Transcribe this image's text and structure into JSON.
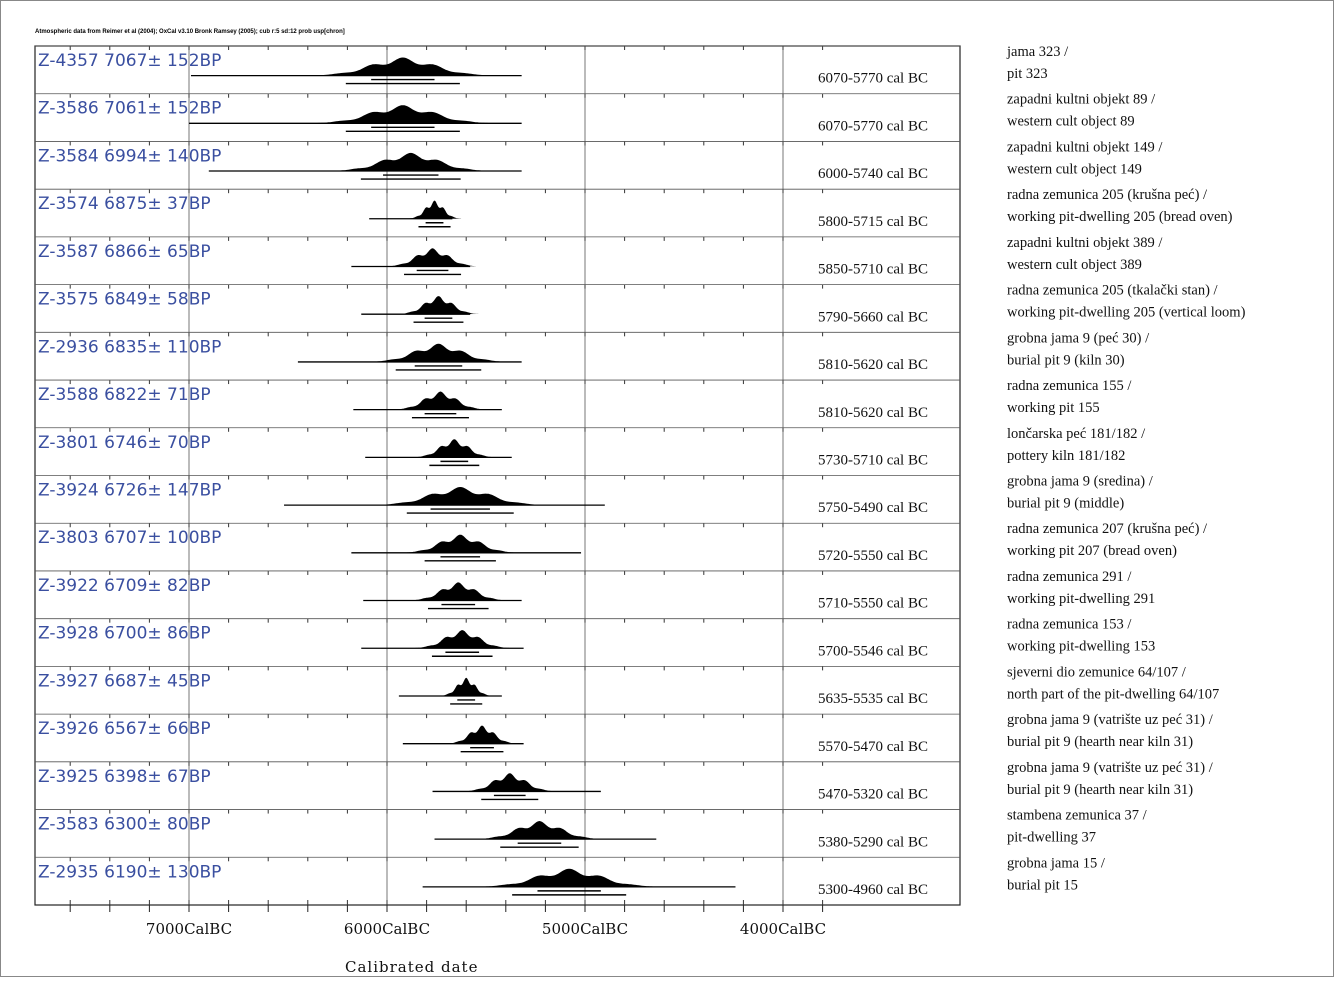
{
  "chart_data": {
    "type": "range",
    "title": "Atmospheric data from Reimer et al (2004); OxCal v3.10 Bronk Ramsey (2005); cub r:5 sd:12 prob usp[chron]",
    "xlabel": "Calibrated date",
    "x_axis": {
      "unit": "cal BC",
      "min": 7800,
      "max": 3800,
      "direction": "decreasing-left-to-right",
      "tick_values": [
        7000,
        6000,
        5000,
        4000
      ],
      "tick_labels": [
        "7000CalBC",
        "6000CalBC",
        "5000CalBC",
        "4000CalBC"
      ],
      "grid": true
    },
    "rows": [
      {
        "lab": "Z-4357",
        "age": "7067± 152BP",
        "range": "6070-5770 cal BC",
        "ctx1": "jama 323 /",
        "ctx2": "pit 323",
        "peak": 5920,
        "spread": 160,
        "whisker": [
          6990,
          5320
        ]
      },
      {
        "lab": "Z-3586",
        "age": "7061± 152BP",
        "range": "6070-5770 cal BC",
        "ctx1": "zapadni kultni objekt 89 /",
        "ctx2": "western cult object 89",
        "peak": 5920,
        "spread": 160,
        "whisker": [
          7000,
          5320
        ]
      },
      {
        "lab": "Z-3584",
        "age": "6994± 140BP",
        "range": "6000-5740 cal BC",
        "ctx1": "zapadni kultni objekt 149 /",
        "ctx2": "western cult object 149",
        "peak": 5880,
        "spread": 140,
        "whisker": [
          6900,
          5320
        ]
      },
      {
        "lab": "Z-3574",
        "age": "6875± 37BP",
        "range": "5800-5715 cal BC",
        "ctx1": "radna zemunica 205 (krušna peć) /",
        "ctx2": "working pit-dwelling 205 (bread oven)",
        "peak": 5760,
        "spread": 45,
        "whisker": [
          6090,
          5670
        ]
      },
      {
        "lab": "Z-3587",
        "age": "6866± 65BP",
        "range": "5850-5710 cal BC",
        "ctx1": "zapadni kultni objekt 389 /",
        "ctx2": "western cult object 389",
        "peak": 5770,
        "spread": 80,
        "whisker": [
          6180,
          5580
        ]
      },
      {
        "lab": "Z-3575",
        "age": "6849± 58BP",
        "range": "5790-5660 cal BC",
        "ctx1": "radna zemunica 205 (tkalački stan) /",
        "ctx2": "working pit-dwelling 205 (vertical loom)",
        "peak": 5740,
        "spread": 70,
        "whisker": [
          6130,
          5580
        ]
      },
      {
        "lab": "Z-2936",
        "age": "6835± 110BP",
        "range": "5810-5620 cal BC",
        "ctx1": "grobna jama 9 (peć 30) /",
        "ctx2": "burial pit 9 (kiln 30)",
        "peak": 5740,
        "spread": 120,
        "whisker": [
          6450,
          5320
        ]
      },
      {
        "lab": "Z-3588",
        "age": "6822± 71BP",
        "range": "5810-5620 cal BC",
        "ctx1": "radna zemunica 155 /",
        "ctx2": "working pit 155",
        "peak": 5730,
        "spread": 80,
        "whisker": [
          6170,
          5420
        ]
      },
      {
        "lab": "Z-3801",
        "age": "6746± 70BP",
        "range": "5730-5710 cal BC",
        "ctx1": "lončarska peć 181/182 /",
        "ctx2": "pottery kiln 181/182",
        "peak": 5660,
        "spread": 70,
        "whisker": [
          6110,
          5370
        ]
      },
      {
        "lab": "Z-3924",
        "age": "6726± 147BP",
        "range": "5750-5490 cal BC",
        "ctx1": "grobna jama 9 (sredina) /",
        "ctx2": "burial pit 9 (middle)",
        "peak": 5630,
        "spread": 150,
        "whisker": [
          6520,
          4900
        ]
      },
      {
        "lab": "Z-3803",
        "age": "6707± 100BP",
        "range": "5720-5550 cal BC",
        "ctx1": "radna zemunica 207 (krušna peć) /",
        "ctx2": "working pit 207 (bread oven)",
        "peak": 5630,
        "spread": 100,
        "whisker": [
          6180,
          5020
        ]
      },
      {
        "lab": "Z-3922",
        "age": "6709± 82BP",
        "range": "5710-5550 cal BC",
        "ctx1": "radna zemunica 291 /",
        "ctx2": "working pit-dwelling 291",
        "peak": 5640,
        "spread": 85,
        "whisker": [
          6120,
          5320
        ]
      },
      {
        "lab": "Z-3928",
        "age": "6700± 86BP",
        "range": "5700-5546 cal BC",
        "ctx1": "radna zemunica 153 /",
        "ctx2": "working pit-dwelling 153",
        "peak": 5620,
        "spread": 85,
        "whisker": [
          6130,
          5310
        ]
      },
      {
        "lab": "Z-3927",
        "age": "6687± 45BP",
        "range": "5635-5535 cal BC",
        "ctx1": "sjeverni dio zemunice 64/107 /",
        "ctx2": "north part of the pit-dwelling 64/107",
        "peak": 5600,
        "spread": 45,
        "whisker": [
          5940,
          5420
        ]
      },
      {
        "lab": "Z-3926",
        "age": "6567± 66BP",
        "range": "5570-5470 cal BC",
        "ctx1": "grobna jama 9 (vatrište uz peć 31) /",
        "ctx2": "burial pit 9 (hearth near kiln 31)",
        "peak": 5520,
        "spread": 60,
        "whisker": [
          5920,
          5310
        ]
      },
      {
        "lab": "Z-3925",
        "age": "6398± 67BP",
        "range": "5470-5320 cal BC",
        "ctx1": "grobna jama 9 (vatrište uz peć 31) /",
        "ctx2": "burial pit 9 (hearth near kiln 31)",
        "peak": 5380,
        "spread": 80,
        "whisker": [
          5770,
          4920
        ]
      },
      {
        "lab": "Z-3583",
        "age": "6300± 80BP",
        "range": "5380-5290 cal BC",
        "ctx1": "stambena zemunica 37 /",
        "ctx2": "pit-dwelling 37",
        "peak": 5230,
        "spread": 110,
        "whisker": [
          5760,
          4640
        ]
      },
      {
        "lab": "Z-2935",
        "age": "6190± 130BP",
        "range": "5300-4960 cal BC",
        "ctx1": "grobna jama 15 /",
        "ctx2": "burial pit 15",
        "peak": 5080,
        "spread": 160,
        "whisker": [
          5820,
          4240
        ]
      }
    ]
  }
}
